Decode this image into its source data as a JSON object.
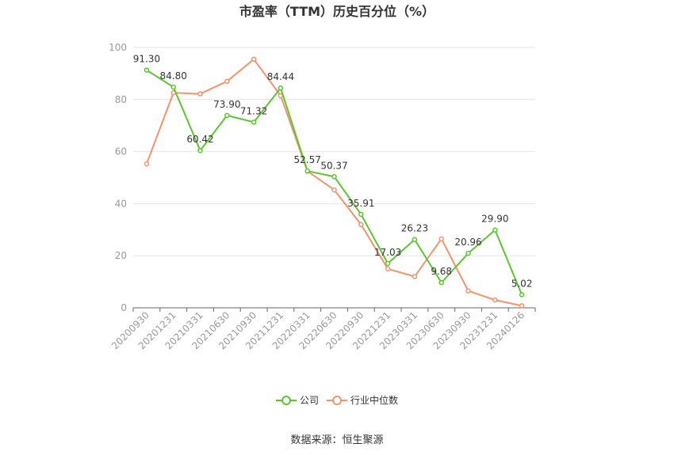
{
  "chart_data": {
    "type": "line",
    "title": "市盈率（TTM）历史百分位（%）",
    "categories": [
      "20200930",
      "20201231",
      "20210331",
      "20210630",
      "20210930",
      "20211231",
      "20220331",
      "20220630",
      "20220930",
      "20221231",
      "20230331",
      "20230630",
      "20230930",
      "20231231",
      "20240126"
    ],
    "ylim": [
      0,
      100
    ],
    "yticks": [
      0,
      20,
      40,
      60,
      80,
      100
    ],
    "grid": true,
    "legend_position": "bottom",
    "series": [
      {
        "name": "公司",
        "color": "#5ac72e",
        "values": [
          91.3,
          84.8,
          60.42,
          73.9,
          71.32,
          84.44,
          52.57,
          50.37,
          35.91,
          17.03,
          26.23,
          9.68,
          20.96,
          29.9,
          5.02
        ],
        "labels": [
          "91.30",
          "84.80",
          "60.42",
          "73.90",
          "71.32",
          "84.44",
          "52.57",
          "50.37",
          "35.91",
          "17.03",
          "26.23",
          "9.68",
          "20.96",
          "29.90",
          "5.02"
        ]
      },
      {
        "name": "行业中位数",
        "color": "#f4936b",
        "values": [
          55.3,
          82.6,
          82.2,
          87.0,
          95.5,
          81.5,
          52.5,
          45.3,
          32.0,
          15.0,
          12.0,
          26.5,
          6.5,
          3.0,
          0.8
        ]
      }
    ],
    "source": "数据来源：恒生聚源"
  }
}
